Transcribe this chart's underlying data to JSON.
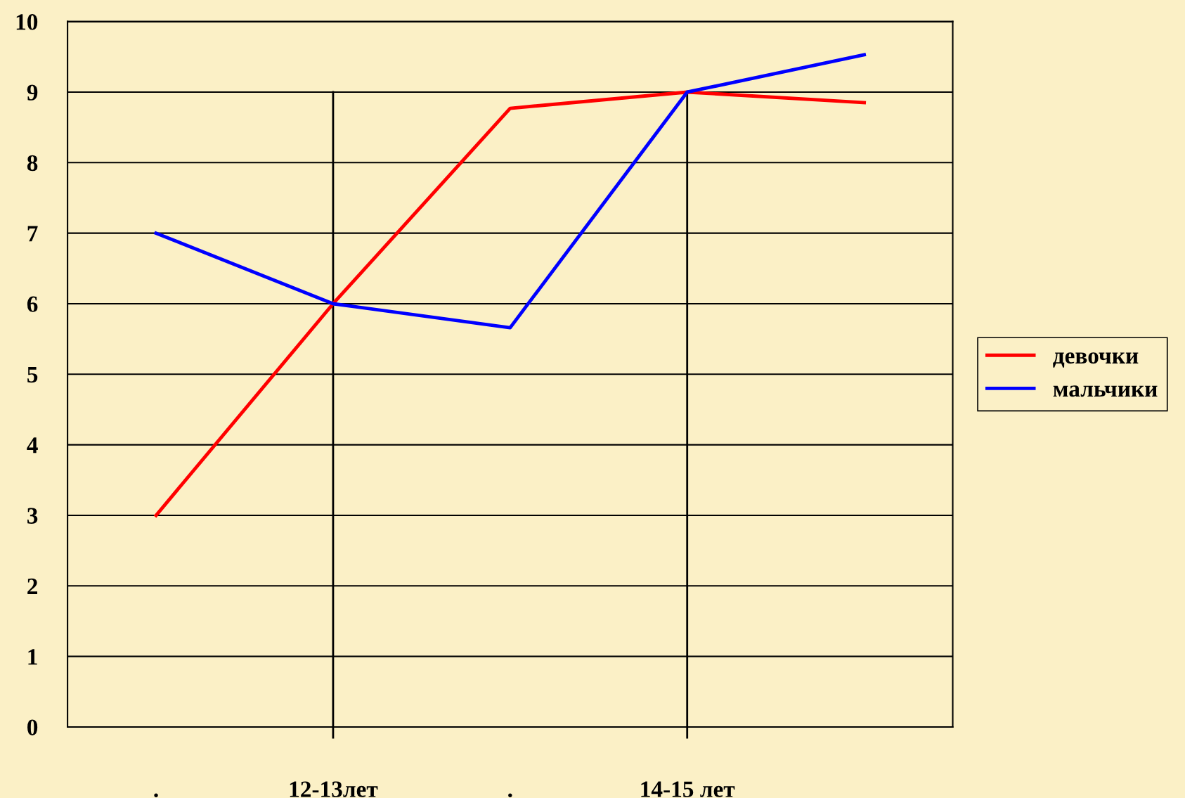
{
  "chart_data": {
    "type": "line",
    "categories": [
      ".",
      "12-13лет",
      ".",
      "14-15 лет",
      null
    ],
    "series": [
      {
        "name": "девочки",
        "color": "#ff0000",
        "values": [
          3,
          6,
          8.77,
          9,
          8.85
        ]
      },
      {
        "name": "мальчики",
        "color": "#0000ff",
        "values": [
          7,
          6,
          5.66,
          9,
          9.53
        ]
      }
    ],
    "ylim": [
      0,
      10
    ],
    "yticks": [
      0,
      1,
      2,
      3,
      4,
      5,
      6,
      7,
      8,
      9,
      10
    ],
    "grid": "y",
    "legend": "right",
    "marker": "none",
    "line_style": "solid",
    "ref_lines": [
      {
        "axis": "x",
        "value": "12-13лет",
        "color": "#000000"
      },
      {
        "axis": "x",
        "value": "14-15 лет",
        "color": "#000000"
      }
    ]
  }
}
